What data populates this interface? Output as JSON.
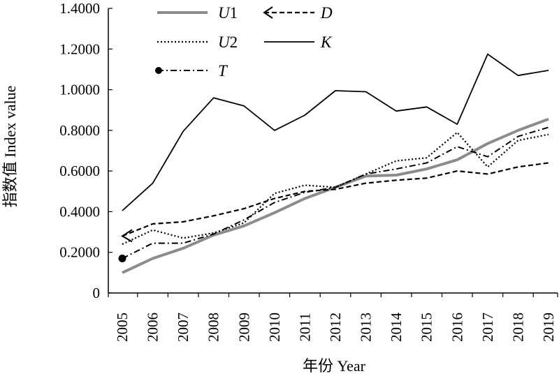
{
  "chart_data": {
    "type": "line",
    "title": "",
    "xlabel": "年份 Year",
    "ylabel": "指数值 Index value",
    "ylim": [
      0,
      1.4
    ],
    "yticks": [
      0,
      0.2,
      0.4,
      0.6,
      0.8,
      1.0,
      1.2,
      1.4
    ],
    "ytick_labels": [
      "0",
      "0.2000",
      "0.4000",
      "0.6000",
      "0.8000",
      "1.0000",
      "1.2000",
      "1.4000"
    ],
    "x": [
      "2005",
      "2006",
      "2007",
      "2008",
      "2009",
      "2010",
      "2011",
      "2012",
      "2013",
      "2014",
      "2015",
      "2016",
      "2017",
      "2018",
      "2019"
    ],
    "grid": false,
    "legend_position": "top-left",
    "series": [
      {
        "name": "U1",
        "style": "solid-thick",
        "color": "#8c8c8c",
        "values": [
          0.1,
          0.17,
          0.22,
          0.285,
          0.33,
          0.395,
          0.465,
          0.52,
          0.575,
          0.58,
          0.61,
          0.655,
          0.735,
          0.8,
          0.855
        ]
      },
      {
        "name": "U2",
        "style": "dotted",
        "color": "#000000",
        "values": [
          0.24,
          0.31,
          0.27,
          0.295,
          0.345,
          0.49,
          0.53,
          0.52,
          0.585,
          0.65,
          0.665,
          0.79,
          0.62,
          0.75,
          0.78
        ]
      },
      {
        "name": "T",
        "style": "dash-dot",
        "marker": "circle-at-start",
        "color": "#000000",
        "values": [
          0.17,
          0.245,
          0.245,
          0.29,
          0.36,
          0.445,
          0.495,
          0.52,
          0.585,
          0.61,
          0.64,
          0.72,
          0.67,
          0.77,
          0.815
        ]
      },
      {
        "name": "D",
        "style": "dashed",
        "marker": "arrow-at-start",
        "color": "#000000",
        "values": [
          0.28,
          0.34,
          0.35,
          0.38,
          0.415,
          0.465,
          0.5,
          0.51,
          0.54,
          0.555,
          0.565,
          0.6,
          0.585,
          0.62,
          0.64
        ]
      },
      {
        "name": "K",
        "style": "solid",
        "color": "#000000",
        "values": [
          0.405,
          0.54,
          0.795,
          0.96,
          0.92,
          0.8,
          0.875,
          0.995,
          0.99,
          0.895,
          0.915,
          0.83,
          1.175,
          1.07,
          1.095
        ]
      }
    ]
  }
}
